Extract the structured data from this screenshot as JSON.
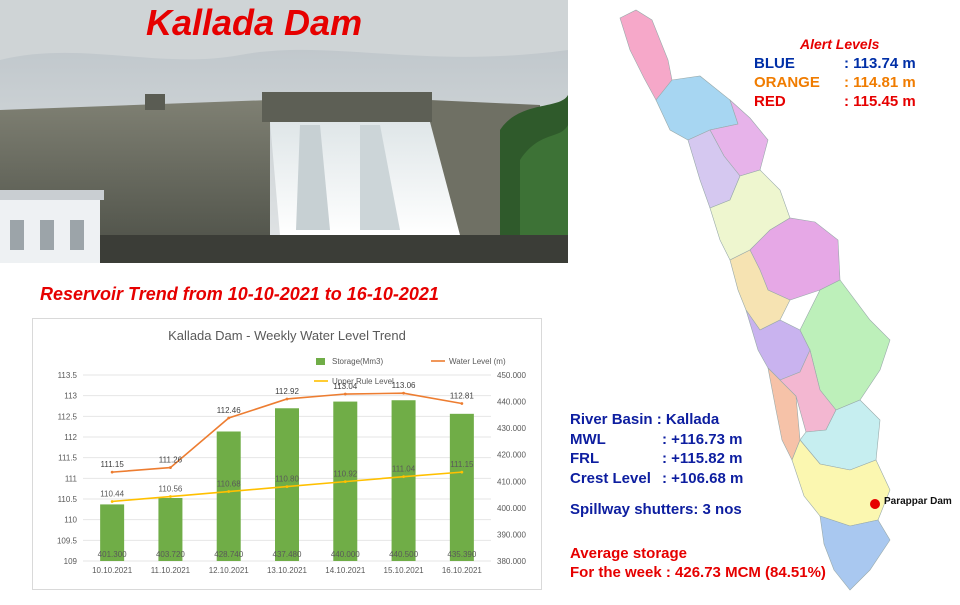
{
  "title": "Kallada Dam",
  "trend_title": "Reservoir Trend from 10-10-2021 to 16-10-2021",
  "chart_data": {
    "type": "bar",
    "title": "Kallada Dam - Weekly Water Level Trend",
    "categories": [
      "10.10.2021",
      "11.10.2021",
      "12.10.2021",
      "13.10.2021",
      "14.10.2021",
      "15.10.2021",
      "16.10.2021"
    ],
    "series": [
      {
        "name": "Storage(Mm3)",
        "type": "bar",
        "axis": "right",
        "color": "#70ad47",
        "values": [
          401.3,
          403.72,
          428.74,
          437.48,
          440.0,
          440.5,
          435.39
        ],
        "labels": [
          "401.300",
          "403.720",
          "428.740",
          "437.480",
          "440.000",
          "440.500",
          "435.390"
        ]
      },
      {
        "name": "Water Level (m)",
        "type": "line",
        "axis": "left",
        "color": "#ed7d31",
        "values": [
          111.15,
          111.26,
          112.46,
          112.92,
          113.04,
          113.06,
          112.81
        ],
        "labels": [
          "111.15",
          "111.26",
          "112.46",
          "112.92",
          "113.04",
          "113.06",
          "112.81"
        ]
      },
      {
        "name": "Upper Rule Level",
        "type": "line",
        "axis": "left",
        "color": "#ffc000",
        "values": [
          110.44,
          110.56,
          110.68,
          110.8,
          110.92,
          111.04,
          111.15
        ],
        "labels": [
          "110.44",
          "110.56",
          "110.68",
          "110.80",
          "110.92",
          "111.04",
          "111.15"
        ]
      }
    ],
    "y_left": {
      "min": 109,
      "max": 113.5,
      "ticks": [
        "109",
        "109.5",
        "110",
        "110.5",
        "111",
        "111.5",
        "112",
        "112.5",
        "113",
        "113.5"
      ]
    },
    "y_right": {
      "min": 380,
      "max": 450,
      "ticks": [
        "380.000",
        "390.000",
        "400.000",
        "410.000",
        "420.000",
        "430.000",
        "440.000",
        "450.000"
      ]
    },
    "grid": true,
    "legend": "top-right"
  },
  "alerts": {
    "title": "Alert Levels",
    "items": [
      {
        "label": "BLUE",
        "value": ": 113.74 m",
        "color": "#002fa7"
      },
      {
        "label": "ORANGE",
        "value": ": 114.81 m",
        "color": "#f07c00"
      },
      {
        "label": "RED",
        "value": ": 115.45 m",
        "color": "#e60000"
      }
    ]
  },
  "info": {
    "river_basin": "River Basin : Kallada",
    "mwl_label": "MWL",
    "mwl_value": ": +116.73 m",
    "frl_label": "FRL",
    "frl_value": ": +115.82 m",
    "crest_label": "Crest Level",
    "crest_value": ": +106.68 m",
    "spillway": "Spillway shutters: 3 nos"
  },
  "storage": {
    "line1": "Average storage",
    "line2": "For the week  :  426.73 MCM (84.51%)"
  },
  "map": {
    "marker_label": "Parappar Dam"
  }
}
